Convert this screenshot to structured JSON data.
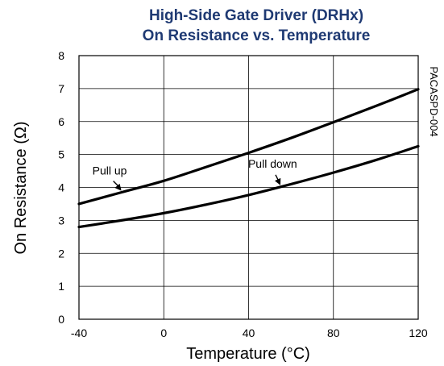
{
  "chart_data": {
    "type": "line",
    "title": "High-Side Gate Driver (DRHx)",
    "subtitle": "On Resistance vs. Temperature",
    "xlabel": "Temperature (°C)",
    "ylabel": "On Resistance (Ω)",
    "xlim": [
      -40,
      120
    ],
    "ylim": [
      0,
      8
    ],
    "x_ticks": [
      "-40",
      "0",
      "40",
      "80",
      "120"
    ],
    "y_ticks": [
      "0",
      "1",
      "2",
      "3",
      "4",
      "5",
      "6",
      "7",
      "8"
    ],
    "grid": true,
    "series": [
      {
        "name": "Pull up",
        "x": [
          -40,
          -20,
          0,
          20,
          40,
          60,
          80,
          100,
          120
        ],
        "values": [
          3.5,
          3.85,
          4.2,
          4.62,
          5.05,
          5.5,
          5.98,
          6.47,
          6.98
        ]
      },
      {
        "name": "Pull down",
        "x": [
          -40,
          -20,
          0,
          20,
          40,
          60,
          80,
          100,
          120
        ],
        "values": [
          2.8,
          3.0,
          3.22,
          3.48,
          3.77,
          4.1,
          4.45,
          4.83,
          5.25
        ]
      }
    ],
    "annotations": [
      {
        "text": "Pull up",
        "target_series": 0,
        "target_x": -20
      },
      {
        "text": "Pull down",
        "target_series": 1,
        "target_x": 55
      }
    ],
    "side_label": "PACASPD-004"
  }
}
